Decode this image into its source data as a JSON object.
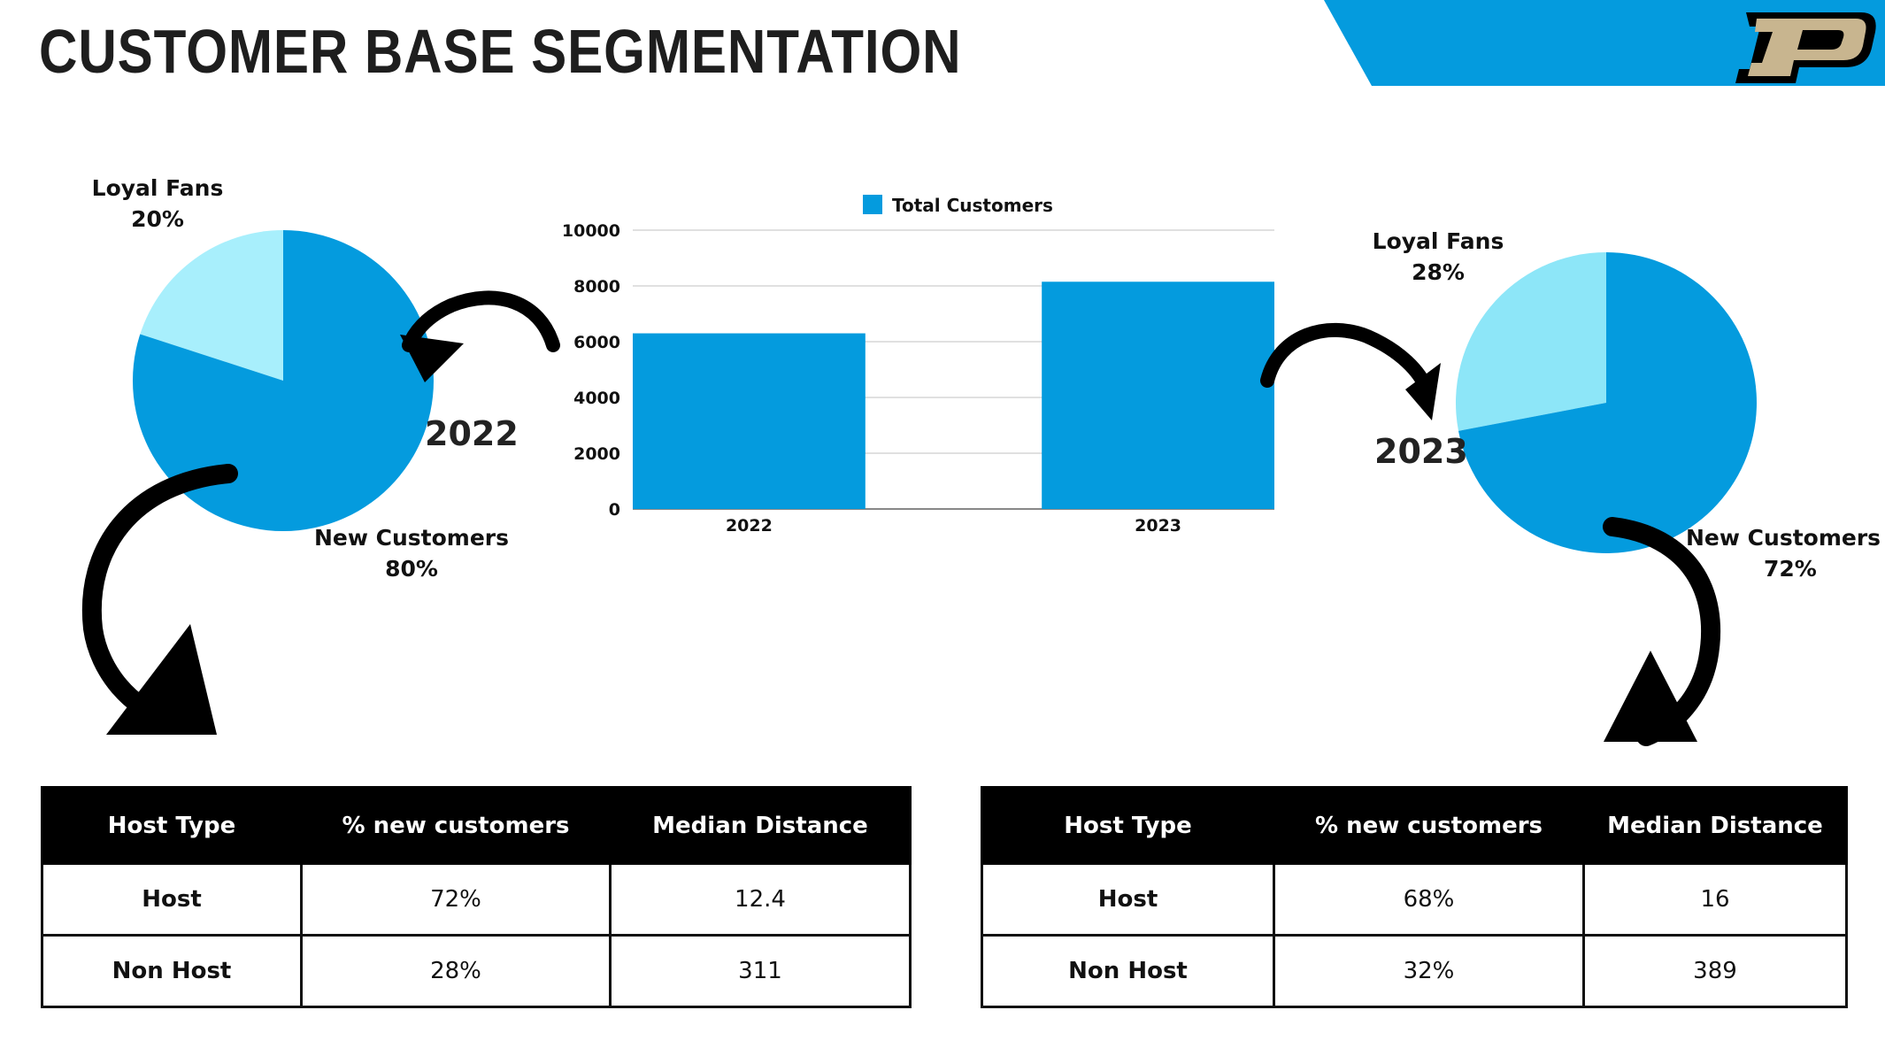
{
  "title": "CUSTOMER BASE SEGMENTATION",
  "colors": {
    "primary_blue": "#049BDE",
    "light_blue_2022": "#A8EFFC",
    "light_blue_2023": "#8DE6F8",
    "logo_gold": "#C8B58F",
    "text_dark": "#1E1E1E"
  },
  "logo": {
    "icon": "purdue-p-logo"
  },
  "chart_data": [
    {
      "type": "pie",
      "year_label": "2022",
      "slices": [
        {
          "label": "Loyal Fans",
          "percent_label": "20%",
          "value": 20,
          "color": "#A8EFFC"
        },
        {
          "label": "New Customers",
          "percent_label": "80%",
          "value": 80,
          "color": "#049BDE"
        }
      ]
    },
    {
      "type": "bar",
      "legend": "Total Customers",
      "categories": [
        "2022",
        "2023"
      ],
      "values": [
        6300,
        8150
      ],
      "ylim": [
        0,
        10000
      ],
      "yticks": [
        "0",
        "2000",
        "4000",
        "6000",
        "8000",
        "10000"
      ],
      "grid": true,
      "legend_position": "top",
      "color": "#049BDE"
    },
    {
      "type": "pie",
      "year_label": "2023",
      "slices": [
        {
          "label": "Loyal Fans",
          "percent_label": "28%",
          "value": 28,
          "color": "#8DE6F8"
        },
        {
          "label": "New Customers",
          "percent_label": "72%",
          "value": 72,
          "color": "#049BDE"
        }
      ]
    }
  ],
  "tables": [
    {
      "headers": [
        "Host Type",
        "% new customers",
        "Median Distance"
      ],
      "rows": [
        [
          "Host",
          "72%",
          "12.4"
        ],
        [
          "Non Host",
          "28%",
          "311"
        ]
      ]
    },
    {
      "headers": [
        "Host Type",
        "% new customers",
        "Median Distance"
      ],
      "rows": [
        [
          "Host",
          "68%",
          "16"
        ],
        [
          "Non Host",
          "32%",
          "389"
        ]
      ]
    }
  ]
}
